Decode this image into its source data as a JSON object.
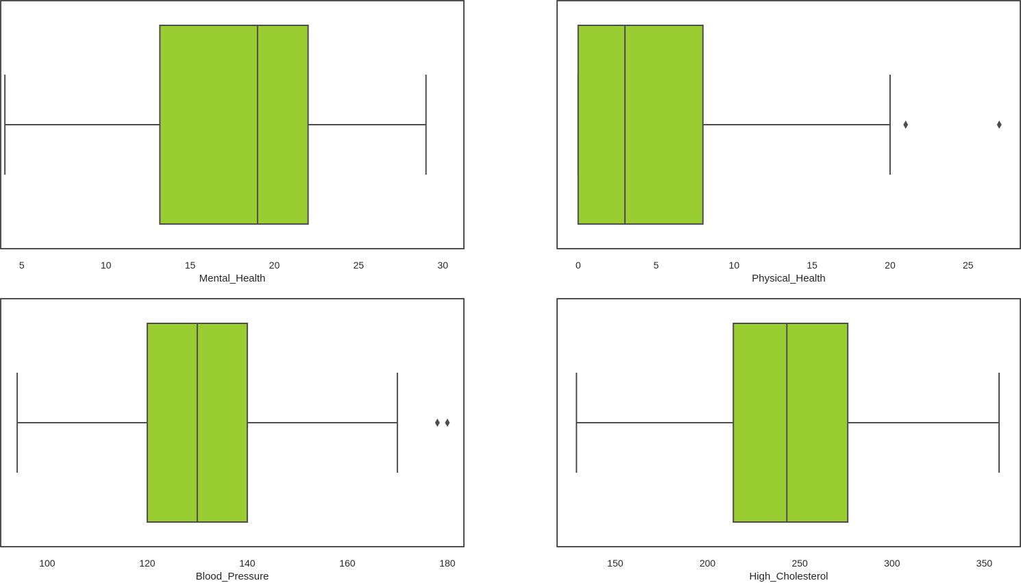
{
  "box_color": "#9ACD32",
  "line_color": "#4D4D4D",
  "chart_data": [
    {
      "type": "boxplot",
      "xlabel": "Mental_Health",
      "xlim": [
        3.75,
        31.25
      ],
      "ticks": [
        5,
        10,
        15,
        20,
        25,
        30
      ],
      "tick_labels": [
        "5",
        "10",
        "15",
        "20",
        "25",
        "30"
      ],
      "whisker_low": 4,
      "q1": 13.2,
      "median": 19,
      "q3": 22,
      "whisker_high": 29,
      "outliers": [],
      "grid": false
    },
    {
      "type": "boxplot",
      "xlabel": "Physical_Health",
      "xlim": [
        -1.35,
        28.35
      ],
      "ticks": [
        0,
        5,
        10,
        15,
        20,
        25
      ],
      "tick_labels": [
        "0",
        "5",
        "10",
        "15",
        "20",
        "25"
      ],
      "whisker_low": 0,
      "q1": 0,
      "median": 3,
      "q3": 8,
      "whisker_high": 20,
      "outliers": [
        21,
        27
      ],
      "grid": false
    },
    {
      "type": "boxplot",
      "xlabel": "Blood_Pressure",
      "xlim": [
        90.7,
        183.3
      ],
      "ticks": [
        100,
        120,
        140,
        160,
        180
      ],
      "tick_labels": [
        "100",
        "120",
        "140",
        "160",
        "180"
      ],
      "whisker_low": 94,
      "q1": 120,
      "median": 130,
      "q3": 140,
      "whisker_high": 170,
      "outliers": [
        178,
        180
      ],
      "grid": false
    },
    {
      "type": "boxplot",
      "xlabel": "High_Cholesterol",
      "xlim": [
        118.5,
        369.5
      ],
      "ticks": [
        150,
        200,
        250,
        300,
        350
      ],
      "tick_labels": [
        "150",
        "200",
        "250",
        "300",
        "350"
      ],
      "whisker_low": 129,
      "q1": 214,
      "median": 243,
      "q3": 276,
      "whisker_high": 358,
      "outliers": [],
      "grid": false
    }
  ]
}
